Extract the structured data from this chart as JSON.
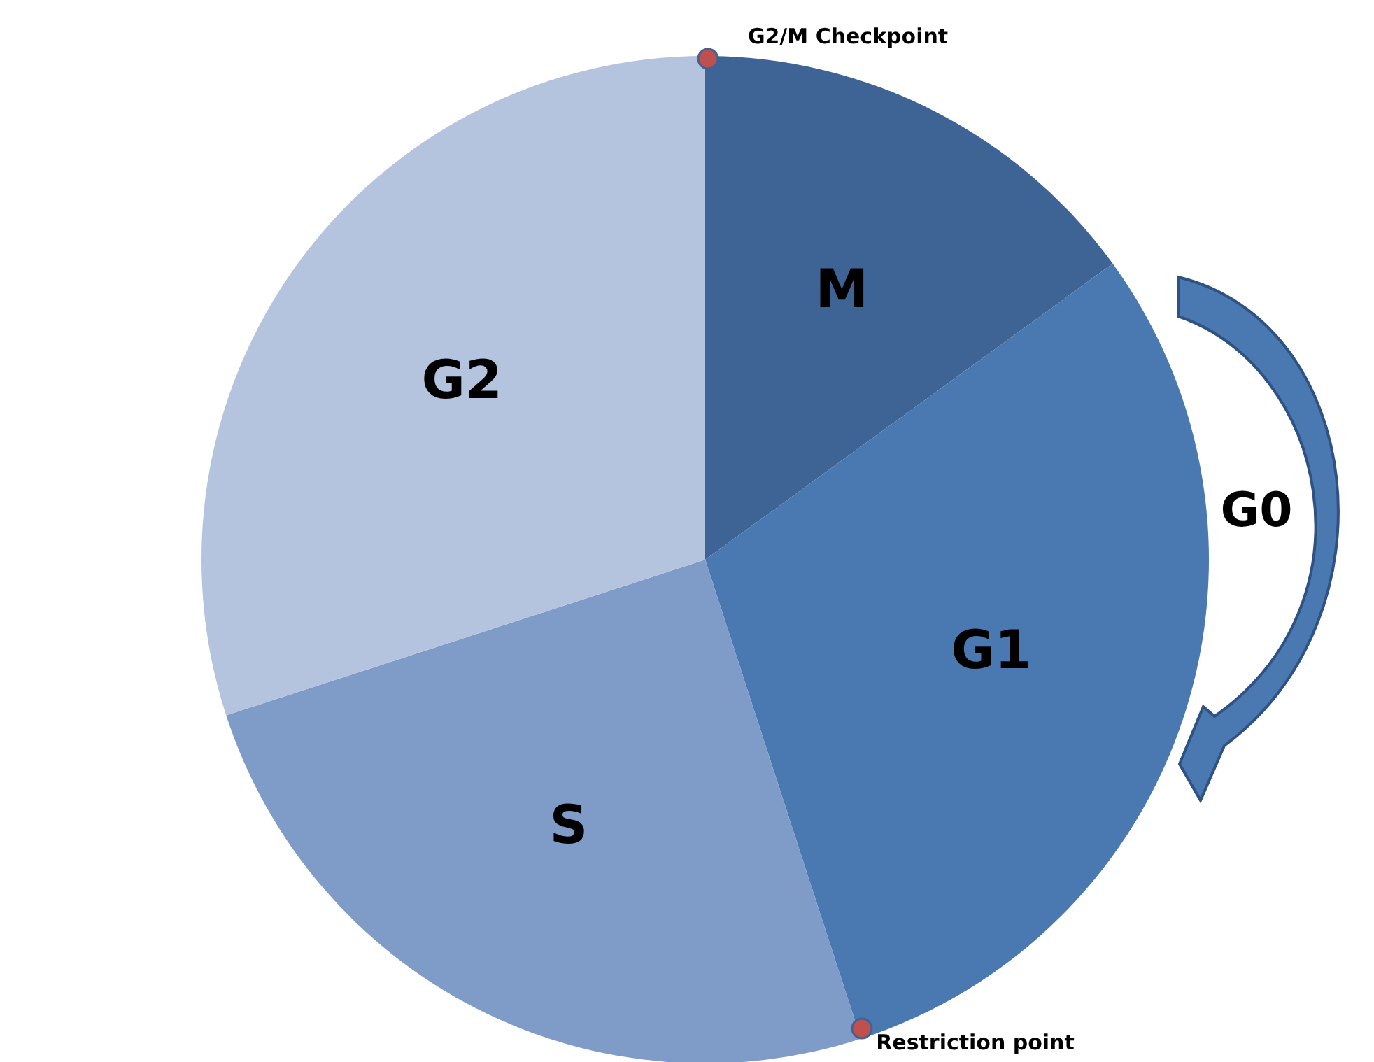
{
  "chart_data": {
    "type": "pie",
    "categories": [
      "M",
      "G1",
      "S",
      "G2"
    ],
    "values": [
      15,
      30,
      25,
      30
    ],
    "colors": [
      "#3e6496",
      "#4a78b0",
      "#7f9bc8",
      "#b4c3de"
    ],
    "annotations": [
      "G2/M Checkpoint",
      "Restriction point",
      "G0"
    ]
  }
}
